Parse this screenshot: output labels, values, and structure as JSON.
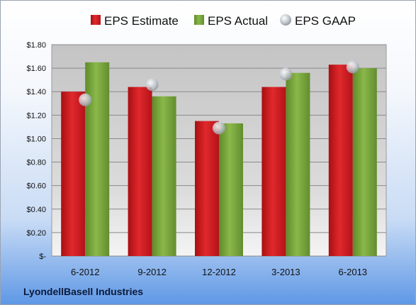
{
  "company": "LyondellBasell Industries",
  "colors": {
    "estimate": "#c8171b",
    "actual": "#76a03a",
    "gaap": "#b9bec6"
  },
  "chart_data": {
    "type": "bar",
    "categories": [
      "6-2012",
      "9-2012",
      "12-2012",
      "3-2013",
      "6-2013"
    ],
    "series": [
      {
        "name": "EPS Estimate",
        "values": [
          1.4,
          1.44,
          1.15,
          1.44,
          1.63
        ]
      },
      {
        "name": "EPS Actual",
        "values": [
          1.65,
          1.36,
          1.13,
          1.56,
          1.6
        ]
      },
      {
        "name": "EPS GAAP",
        "type": "scatter",
        "values": [
          1.33,
          1.46,
          1.09,
          1.55,
          1.61
        ]
      }
    ],
    "ylim": [
      0,
      1.8
    ],
    "yticks": [
      0,
      0.2,
      0.4,
      0.6,
      0.8,
      1.0,
      1.2,
      1.4,
      1.6,
      1.8
    ],
    "ytick_labels": [
      "$-",
      "$0.20",
      "$0.40",
      "$0.60",
      "$0.80",
      "$1.00",
      "$1.20",
      "$1.40",
      "$1.60",
      "$1.80"
    ],
    "grid": true,
    "legend": "top"
  }
}
